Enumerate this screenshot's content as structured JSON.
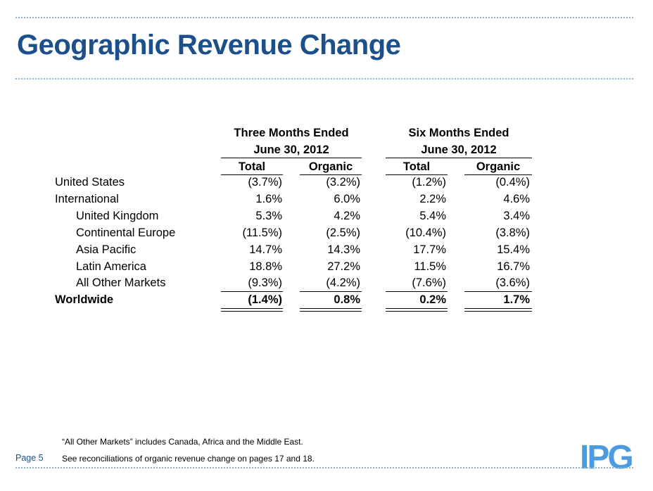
{
  "title": "Geographic Revenue Change",
  "groups": [
    {
      "line1": "Three Months Ended",
      "line2": "June 30, 2012",
      "cols": [
        "Total",
        "Organic"
      ]
    },
    {
      "line1": "Six Months Ended",
      "line2": "June 30, 2012",
      "cols": [
        "Total",
        "Organic"
      ]
    }
  ],
  "rows": [
    {
      "label": "United States",
      "values": [
        "(3.7%)",
        "(3.2%)",
        "(1.2%)",
        "(0.4%)"
      ]
    },
    {
      "label": "International",
      "values": [
        "1.6%",
        "6.0%",
        "2.2%",
        "4.6%"
      ]
    },
    {
      "label": "United Kingdom",
      "values": [
        "5.3%",
        "4.2%",
        "5.4%",
        "3.4%"
      ]
    },
    {
      "label": "Continental Europe",
      "values": [
        "(11.5%)",
        "(2.5%)",
        "(10.4%)",
        "(3.8%)"
      ]
    },
    {
      "label": "Asia Pacific",
      "values": [
        "14.7%",
        "14.3%",
        "17.7%",
        "15.4%"
      ]
    },
    {
      "label": "Latin America",
      "values": [
        "18.8%",
        "27.2%",
        "11.5%",
        "16.7%"
      ]
    },
    {
      "label": "All Other Markets",
      "values": [
        "(9.3%)",
        "(4.2%)",
        "(7.6%)",
        "(3.6%)"
      ]
    },
    {
      "label": "Worldwide",
      "values": [
        "(1.4%)",
        "0.8%",
        "0.2%",
        "1.7%"
      ]
    }
  ],
  "footnotes": [
    "“All Other Markets” includes Canada, Africa and the Middle East.",
    "See reconciliations of organic revenue change on pages 17 and 18."
  ],
  "page_label": "Page 5",
  "logo": {
    "text": "IPG",
    "color": "#4a9be0"
  },
  "colors": {
    "title": "#1d4f8a",
    "dotted_rule": "#8fb4d6"
  }
}
